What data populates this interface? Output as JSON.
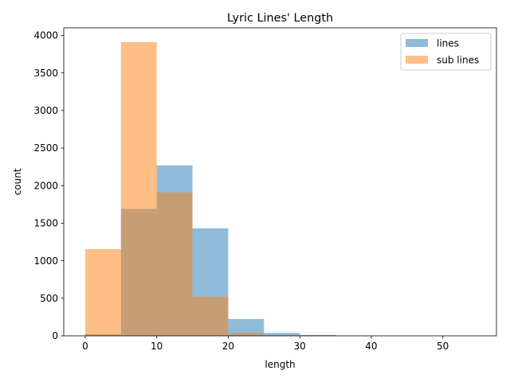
{
  "chart_data": {
    "type": "bar",
    "title": "Lyric Lines' Length",
    "xlabel": "length",
    "ylabel": "count",
    "xlim": [
      -3,
      57.5
    ],
    "ylim": [
      0,
      4100
    ],
    "xticks": [
      0,
      10,
      20,
      30,
      40,
      50
    ],
    "yticks": [
      0,
      500,
      1000,
      1500,
      2000,
      2500,
      3000,
      3500,
      4000
    ],
    "bin_edges": [
      0,
      5,
      10,
      15,
      20,
      25,
      30,
      35,
      40,
      45,
      50,
      55
    ],
    "series": [
      {
        "name": "lines",
        "color": "#1f77b4",
        "opacity": 0.5,
        "values": [
          20,
          1690,
          2270,
          1430,
          225,
          40,
          12,
          5,
          0,
          0,
          0
        ]
      },
      {
        "name": "sub lines",
        "color": "#ff7f0e",
        "opacity": 0.5,
        "values": [
          1155,
          3910,
          1910,
          520,
          35,
          6,
          0,
          0,
          0,
          0,
          0
        ]
      }
    ],
    "grid": false,
    "legend": "top-right"
  }
}
